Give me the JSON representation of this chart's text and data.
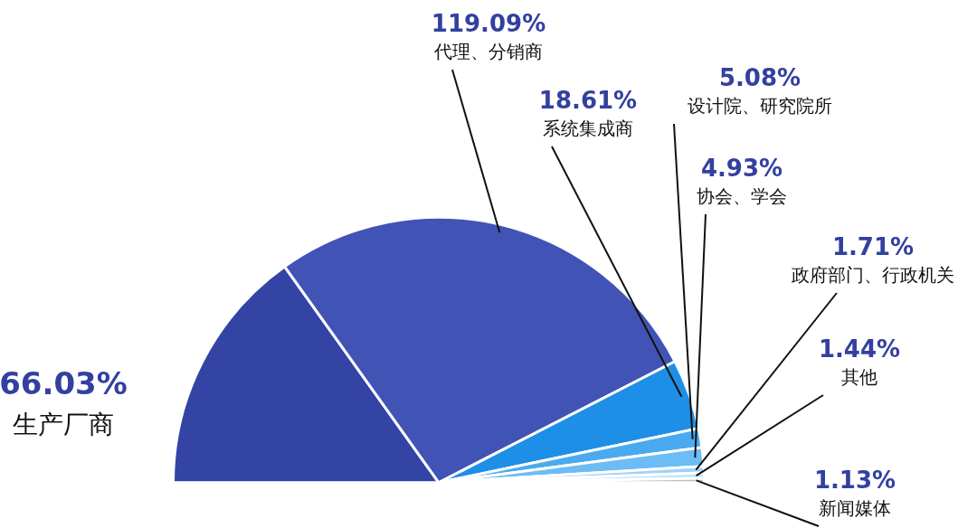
{
  "chart_data": {
    "type": "pie",
    "categories": [
      "生产厂商",
      "代理、分销商",
      "系统集成商",
      "设计院、研究院所",
      "协会、学会",
      "政府部门、行政机关",
      "其他",
      "新闻媒体"
    ],
    "values": [
      66.03,
      119.09,
      18.61,
      5.08,
      4.93,
      1.71,
      1.44,
      1.13
    ],
    "value_labels": [
      "66.03%",
      "119.09%",
      "18.61%",
      "5.08%",
      "4.93%",
      "1.71%",
      "1.44%",
      "1.13%"
    ],
    "colors": [
      "#3344a4",
      "#4253b6",
      "#1e8fe6",
      "#4aaaf0",
      "#6cbcf5",
      "#9ed2f8",
      "#c2e3fb",
      "#bdbdbd"
    ],
    "legend": false
  }
}
